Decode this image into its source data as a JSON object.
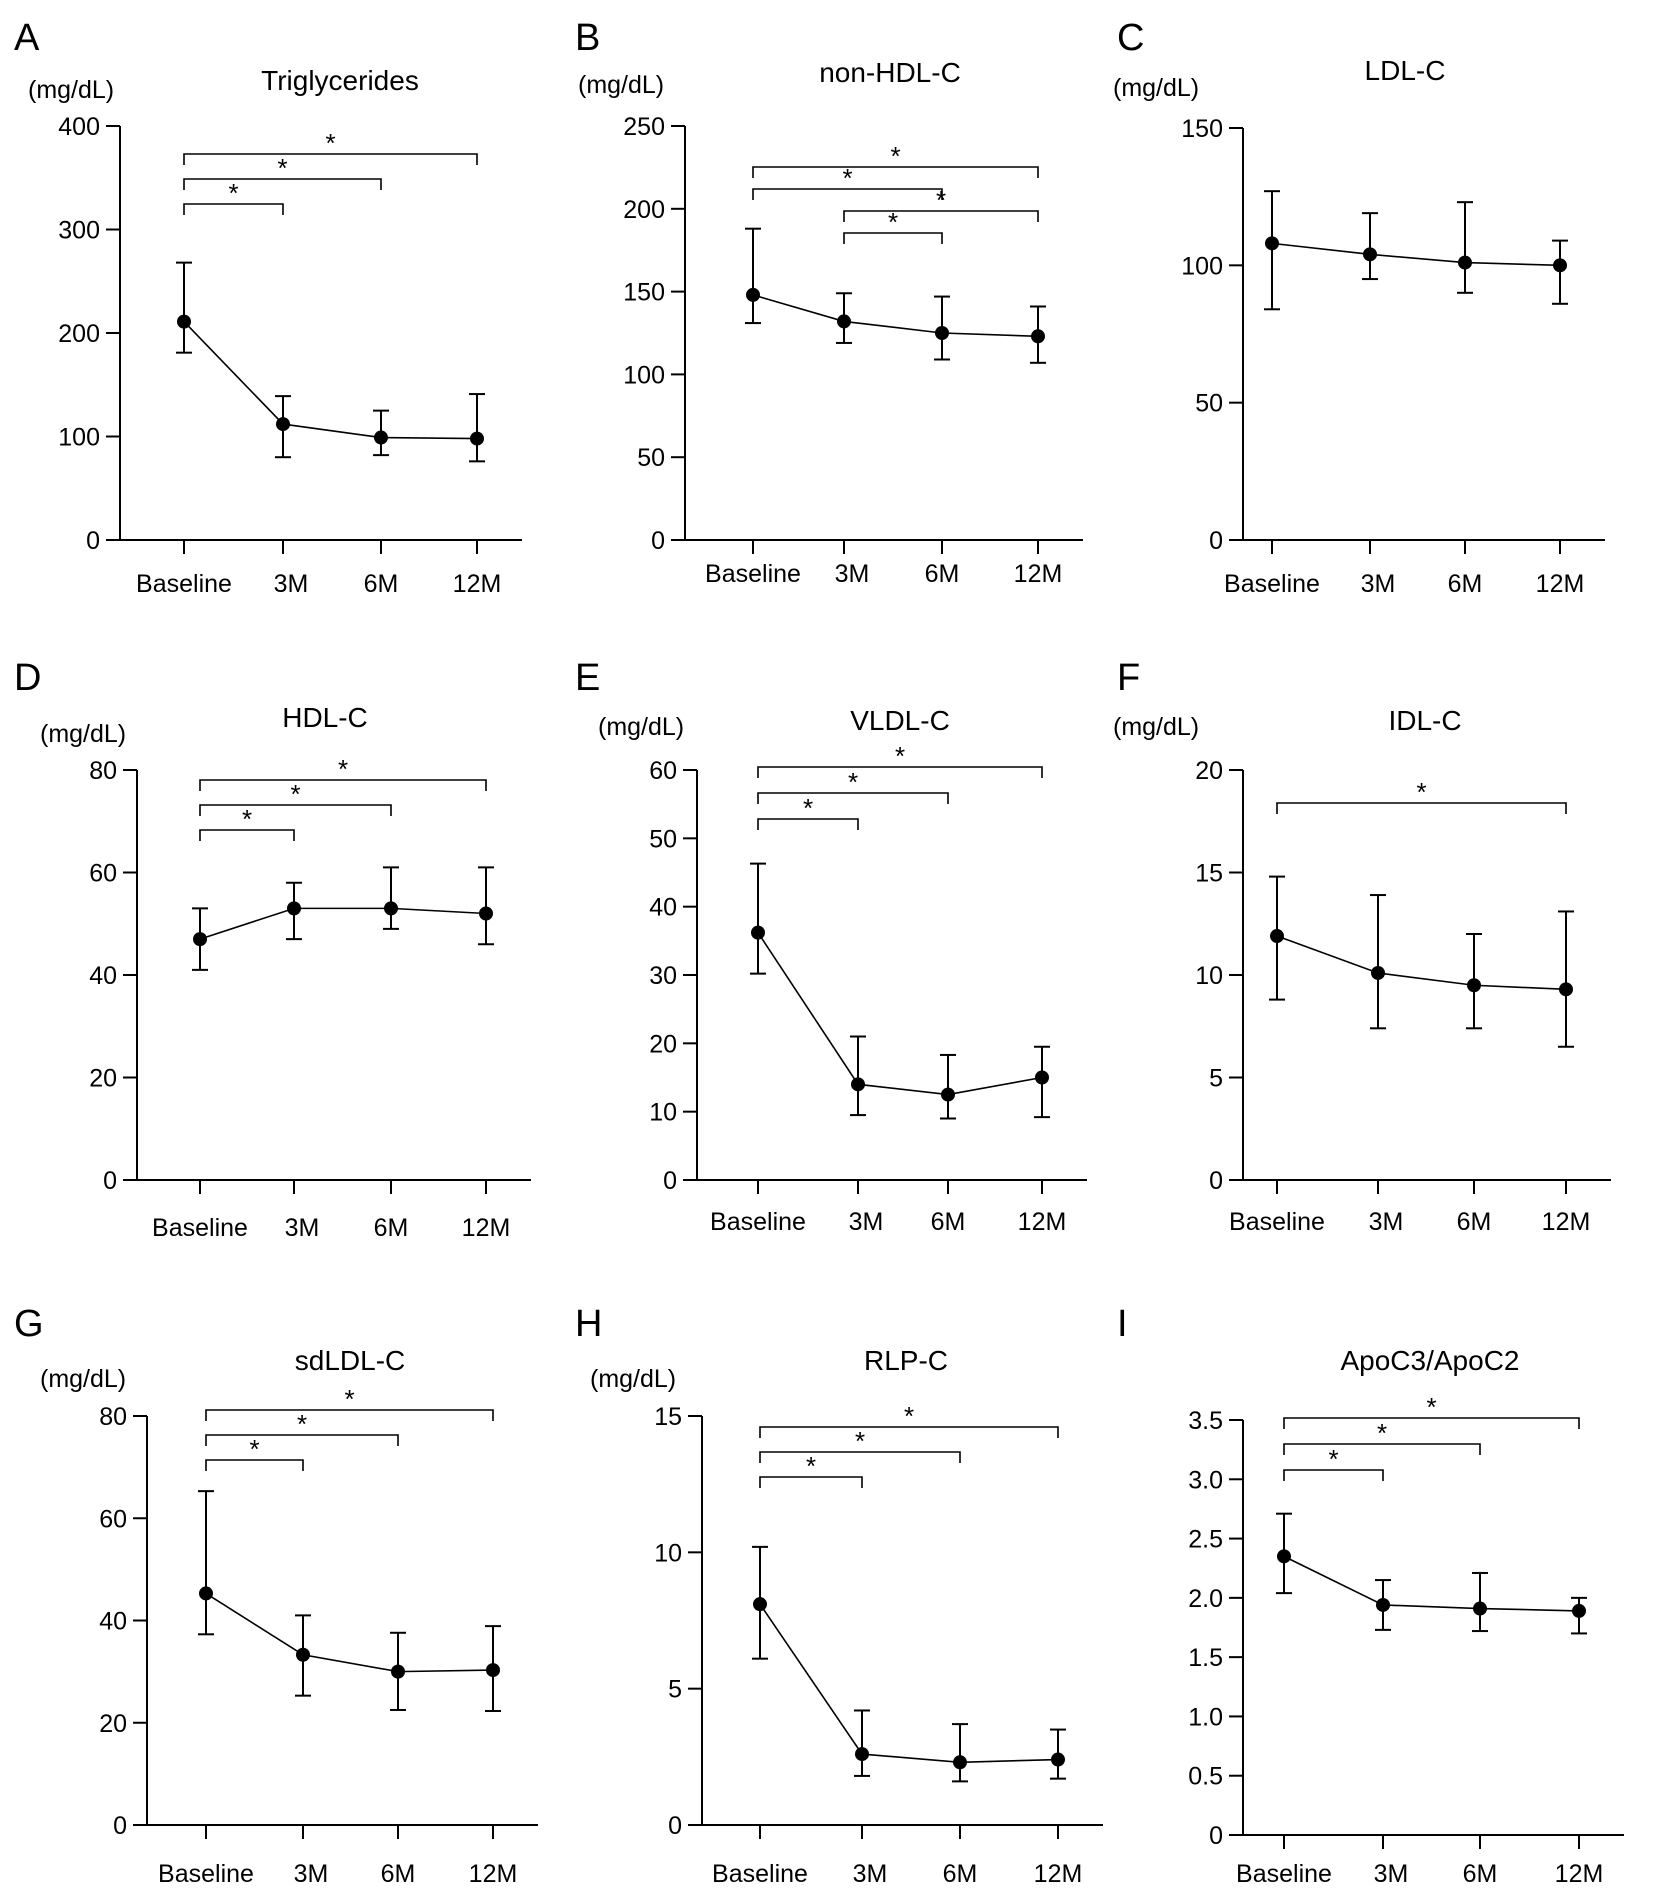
{
  "figure": {
    "categories": [
      "Baseline",
      "3M",
      "6M",
      "12M"
    ],
    "unit": "(mg/dL)"
  },
  "chart_data": [
    {
      "panel": "A",
      "type": "line",
      "title": "Triglycerides",
      "ylabel": "(mg/dL)",
      "categories": [
        "Baseline",
        "3M",
        "6M",
        "12M"
      ],
      "ylim": [
        0,
        400
      ],
      "yticks": [
        0,
        100,
        200,
        300,
        400
      ],
      "ytick_labels": [
        "0",
        "100",
        "200",
        "300",
        "400"
      ],
      "values": [
        211,
        112,
        99,
        98
      ],
      "err_low": [
        181,
        80,
        82,
        76
      ],
      "err_high": [
        268,
        139,
        125,
        141
      ],
      "significance": [
        {
          "from": 0,
          "to": 1,
          "label": "*"
        },
        {
          "from": 0,
          "to": 2,
          "label": "*"
        },
        {
          "from": 0,
          "to": 3,
          "label": "*"
        }
      ]
    },
    {
      "panel": "B",
      "type": "line",
      "title": "non-HDL-C",
      "ylabel": "(mg/dL)",
      "categories": [
        "Baseline",
        "3M",
        "6M",
        "12M"
      ],
      "ylim": [
        0,
        250
      ],
      "yticks": [
        0,
        50,
        100,
        150,
        200,
        250
      ],
      "ytick_labels": [
        "0",
        "50",
        "100",
        "150",
        "200",
        "250"
      ],
      "values": [
        148,
        132,
        125,
        123
      ],
      "err_low": [
        131,
        119,
        109,
        107
      ],
      "err_high": [
        188,
        149,
        147,
        141
      ],
      "significance": [
        {
          "from": 1,
          "to": 2,
          "label": "*"
        },
        {
          "from": 1,
          "to": 3,
          "label": "*"
        },
        {
          "from": 0,
          "to": 2,
          "label": "*"
        },
        {
          "from": 0,
          "to": 3,
          "label": "*"
        }
      ]
    },
    {
      "panel": "C",
      "type": "line",
      "title": "LDL-C",
      "ylabel": "(mg/dL)",
      "categories": [
        "Baseline",
        "3M",
        "6M",
        "12M"
      ],
      "ylim": [
        0,
        150
      ],
      "yticks": [
        0,
        50,
        100,
        150
      ],
      "ytick_labels": [
        "0",
        "50",
        "100",
        "150"
      ],
      "values": [
        108,
        104,
        101,
        100
      ],
      "err_low": [
        84,
        95,
        90,
        86
      ],
      "err_high": [
        127,
        119,
        123,
        109
      ],
      "significance": []
    },
    {
      "panel": "D",
      "type": "line",
      "title": "HDL-C",
      "ylabel": "(mg/dL)",
      "categories": [
        "Baseline",
        "3M",
        "6M",
        "12M"
      ],
      "ylim": [
        0,
        80
      ],
      "yticks": [
        0,
        20,
        40,
        60,
        80
      ],
      "ytick_labels": [
        "0",
        "20",
        "40",
        "60",
        "80"
      ],
      "values": [
        47,
        53,
        53,
        52
      ],
      "err_low": [
        41,
        47,
        49,
        46
      ],
      "err_high": [
        53,
        58,
        61,
        61
      ],
      "significance": [
        {
          "from": 0,
          "to": 1,
          "label": "*"
        },
        {
          "from": 0,
          "to": 2,
          "label": "*"
        },
        {
          "from": 0,
          "to": 3,
          "label": "*"
        }
      ]
    },
    {
      "panel": "E",
      "type": "line",
      "title": "VLDL-C",
      "ylabel": "(mg/dL)",
      "categories": [
        "Baseline",
        "3M",
        "6M",
        "12M"
      ],
      "ylim": [
        0,
        60
      ],
      "yticks": [
        0,
        10,
        20,
        30,
        40,
        50,
        60
      ],
      "ytick_labels": [
        "0",
        "10",
        "20",
        "30",
        "40",
        "50",
        "60"
      ],
      "values": [
        36.2,
        14.0,
        12.5,
        15.0
      ],
      "err_low": [
        30.2,
        9.5,
        9.0,
        9.2
      ],
      "err_high": [
        46.3,
        21.0,
        18.3,
        19.5
      ],
      "significance": [
        {
          "from": 0,
          "to": 1,
          "label": "*"
        },
        {
          "from": 0,
          "to": 2,
          "label": "*"
        },
        {
          "from": 0,
          "to": 3,
          "label": "*"
        }
      ]
    },
    {
      "panel": "F",
      "type": "line",
      "title": "IDL-C",
      "ylabel": "(mg/dL)",
      "categories": [
        "Baseline",
        "3M",
        "6M",
        "12M"
      ],
      "ylim": [
        0,
        20
      ],
      "yticks": [
        0,
        5,
        10,
        15,
        20
      ],
      "ytick_labels": [
        "0",
        "5",
        "10",
        "15",
        "20"
      ],
      "values": [
        11.9,
        10.1,
        9.5,
        9.3
      ],
      "err_low": [
        8.8,
        7.4,
        7.4,
        6.5
      ],
      "err_high": [
        14.8,
        13.9,
        12.0,
        13.1
      ],
      "significance": [
        {
          "from": 0,
          "to": 3,
          "label": "*"
        }
      ]
    },
    {
      "panel": "G",
      "type": "line",
      "title": "sdLDL-C",
      "ylabel": "(mg/dL)",
      "categories": [
        "Baseline",
        "3M",
        "6M",
        "12M"
      ],
      "ylim": [
        0,
        80
      ],
      "yticks": [
        0,
        20,
        40,
        60,
        80
      ],
      "ytick_labels": [
        "0",
        "20",
        "40",
        "60",
        "80"
      ],
      "values": [
        45.3,
        33.3,
        30.0,
        30.3
      ],
      "err_low": [
        37.3,
        25.3,
        22.5,
        22.3
      ],
      "err_high": [
        65.3,
        41.0,
        37.6,
        38.9
      ],
      "significance": [
        {
          "from": 0,
          "to": 1,
          "label": "*"
        },
        {
          "from": 0,
          "to": 2,
          "label": "*"
        },
        {
          "from": 0,
          "to": 3,
          "label": "*"
        }
      ]
    },
    {
      "panel": "H",
      "type": "line",
      "title": "RLP-C",
      "ylabel": "(mg/dL)",
      "categories": [
        "Baseline",
        "3M",
        "6M",
        "12M"
      ],
      "ylim": [
        0,
        15
      ],
      "yticks": [
        0,
        5,
        10,
        15
      ],
      "ytick_labels": [
        "0",
        "5",
        "10",
        "15"
      ],
      "values": [
        8.1,
        2.6,
        2.3,
        2.4
      ],
      "err_low": [
        6.1,
        1.8,
        1.6,
        1.7
      ],
      "err_high": [
        10.2,
        4.2,
        3.7,
        3.5
      ],
      "significance": [
        {
          "from": 0,
          "to": 1,
          "label": "*"
        },
        {
          "from": 0,
          "to": 2,
          "label": "*"
        },
        {
          "from": 0,
          "to": 3,
          "label": "*"
        }
      ]
    },
    {
      "panel": "I",
      "type": "line",
      "title": "ApoC3/ApoC2",
      "ylabel": "",
      "categories": [
        "Baseline",
        "3M",
        "6M",
        "12M"
      ],
      "ylim": [
        0,
        3.5
      ],
      "yticks": [
        0,
        0.5,
        1.0,
        1.5,
        2.0,
        2.5,
        3.0,
        3.5
      ],
      "ytick_labels": [
        "0",
        "0.5",
        "1.0",
        "1.5",
        "2.0",
        "2.5",
        "3.0",
        "3.5"
      ],
      "values": [
        2.35,
        1.94,
        1.91,
        1.89
      ],
      "err_low": [
        2.04,
        1.73,
        1.72,
        1.7
      ],
      "err_high": [
        2.71,
        2.15,
        2.21,
        2.0
      ],
      "significance": [
        {
          "from": 0,
          "to": 1,
          "label": "*"
        },
        {
          "from": 0,
          "to": 2,
          "label": "*"
        },
        {
          "from": 0,
          "to": 3,
          "label": "*"
        }
      ]
    }
  ]
}
